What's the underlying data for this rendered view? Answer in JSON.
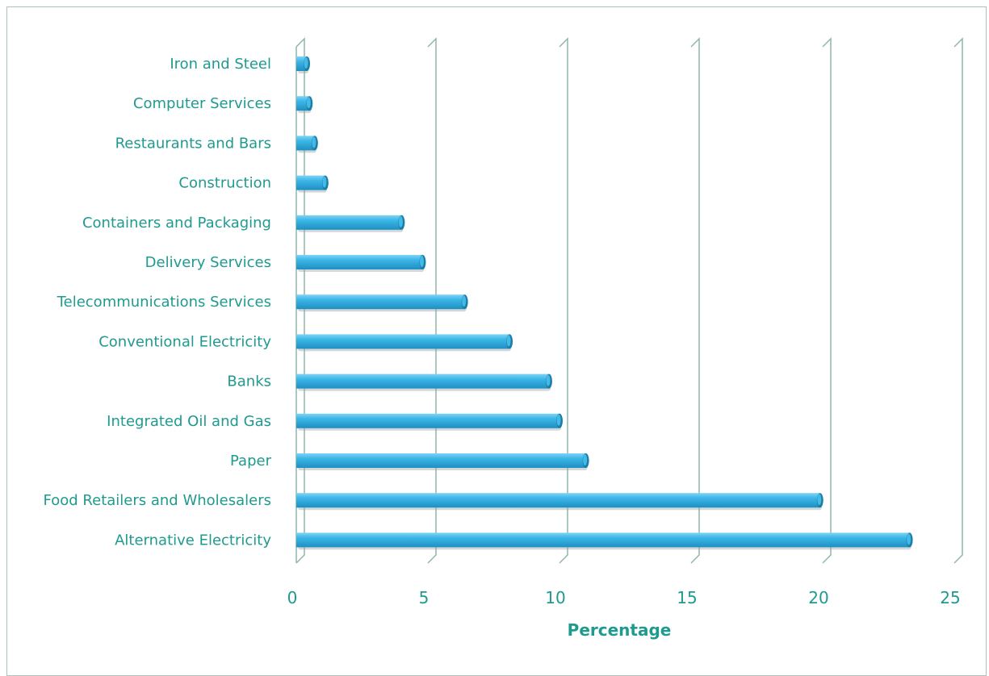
{
  "chart_data": {
    "type": "bar",
    "orientation": "horizontal",
    "style": "3d-cylinder",
    "categories": [
      "Iron and Steel",
      "Computer Services",
      "Restaurants and Bars",
      "Construction",
      "Containers and Packaging",
      "Delivery Services",
      "Telecommunications Services",
      "Conventional Electricity",
      "Banks",
      "Integrated Oil and Gas",
      "Paper",
      "Food Retailers and Wholesalers",
      "Alternative Electricity"
    ],
    "values": [
      0.4,
      0.5,
      0.7,
      1.1,
      4.0,
      4.8,
      6.4,
      8.1,
      9.6,
      10.0,
      11.0,
      19.9,
      23.3
    ],
    "xlabel": "Percentage",
    "ylabel": "",
    "xlim": [
      0,
      25
    ],
    "xticks": [
      "0",
      "5",
      "10",
      "15",
      "20",
      "25"
    ],
    "grid": true,
    "legend": "none",
    "colors": {
      "bar": "#3bb6e8",
      "bar_dark": "#1a7fa8",
      "gridline": "#8fb5ac",
      "text": "#1f9a8e"
    }
  }
}
